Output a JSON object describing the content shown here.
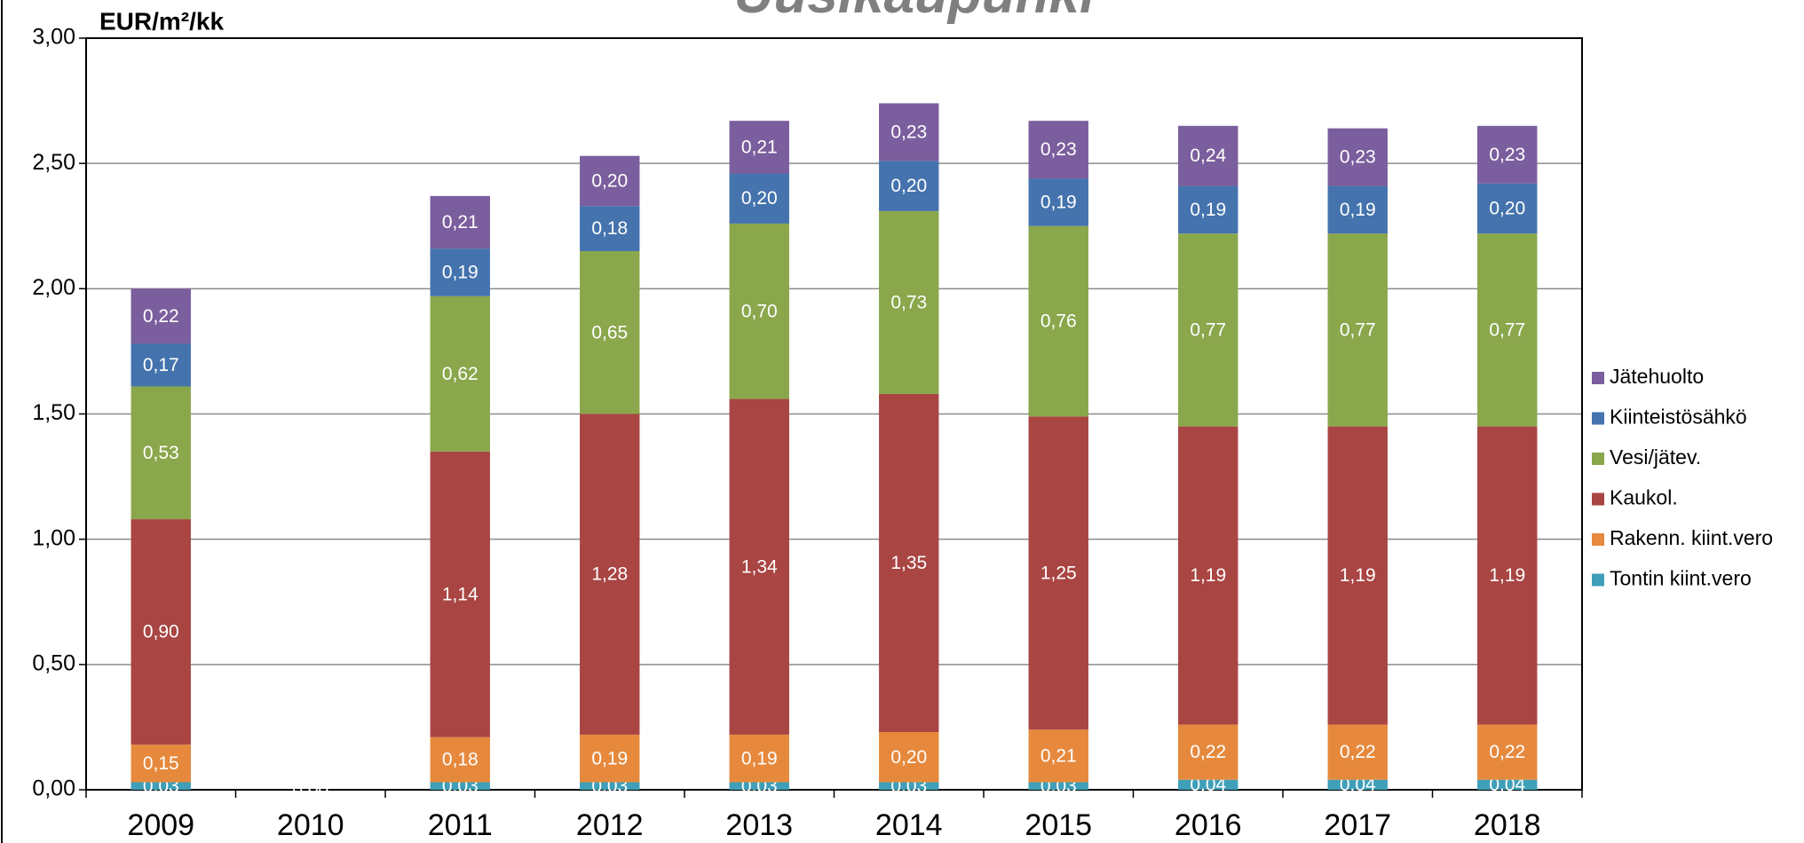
{
  "chart_data": {
    "type": "stacked_bar",
    "title": "Uusikaupunki",
    "y_label": "EUR/m²/kk",
    "categories": [
      "2009",
      "2010",
      "2011",
      "2012",
      "2013",
      "2014",
      "2015",
      "2016",
      "2017",
      "2018"
    ],
    "series": [
      {
        "name": "Tontin kiint.vero",
        "color": "#3f9fb8",
        "values": [
          0.03,
          0,
          0.03,
          0.03,
          0.03,
          0.03,
          0.03,
          0.04,
          0.04,
          0.04
        ],
        "value_labels": [
          "0,03",
          "0,00",
          "0,03",
          "0,03",
          "0,03",
          "0,03",
          "0,03",
          "0,04",
          "0,04",
          "0,04"
        ]
      },
      {
        "name": "Rakenn. kiint.vero",
        "color": "#e6893d",
        "values": [
          0.15,
          null,
          0.18,
          0.19,
          0.19,
          0.2,
          0.21,
          0.22,
          0.22,
          0.22
        ],
        "value_labels": [
          "0,15",
          null,
          "0,18",
          "0,19",
          "0,19",
          "0,20",
          "0,21",
          "0,22",
          "0,22",
          "0,22"
        ]
      },
      {
        "name": "Kaukol.",
        "color": "#a94543",
        "values": [
          0.9,
          null,
          1.14,
          1.28,
          1.34,
          1.35,
          1.25,
          1.19,
          1.19,
          1.19
        ],
        "value_labels": [
          "0,90",
          null,
          "1,14",
          "1,28",
          "1,34",
          "1,35",
          "1,25",
          "1,19",
          "1,19",
          "1,19"
        ]
      },
      {
        "name": "Vesi/jätev.",
        "color": "#8aa74c",
        "values": [
          0.53,
          null,
          0.62,
          0.65,
          0.7,
          0.73,
          0.76,
          0.77,
          0.77,
          0.77
        ],
        "value_labels": [
          "0,53",
          null,
          "0,62",
          "0,65",
          "0,70",
          "0,73",
          "0,76",
          "0,77",
          "0,77",
          "0,77"
        ]
      },
      {
        "name": "Kiinteistösähkö",
        "color": "#4473ad",
        "values": [
          0.17,
          null,
          0.19,
          0.18,
          0.2,
          0.2,
          0.19,
          0.19,
          0.19,
          0.2
        ],
        "value_labels": [
          "0,17",
          null,
          "0,19",
          "0,18",
          "0,20",
          "0,20",
          "0,19",
          "0,19",
          "0,19",
          "0,20"
        ]
      },
      {
        "name": "Jätehuolto",
        "color": "#7b5e9d",
        "values": [
          0.22,
          null,
          0.21,
          0.2,
          0.21,
          0.23,
          0.23,
          0.24,
          0.23,
          0.23
        ],
        "value_labels": [
          "0,22",
          null,
          "0,21",
          "0,20",
          "0,21",
          "0,23",
          "0,23",
          "0,24",
          "0,23",
          "0,23"
        ]
      }
    ],
    "ylim": [
      0,
      3
    ],
    "yticks": [
      {
        "value": 0,
        "label": "0,00"
      },
      {
        "value": 0.5,
        "label": "0,50"
      },
      {
        "value": 1,
        "label": "1,00"
      },
      {
        "value": 1.5,
        "label": "1,50"
      },
      {
        "value": 2,
        "label": "2,00"
      },
      {
        "value": 2.5,
        "label": "2,50"
      },
      {
        "value": 3,
        "label": "3,00"
      }
    ],
    "grid": true,
    "legend": "right"
  }
}
